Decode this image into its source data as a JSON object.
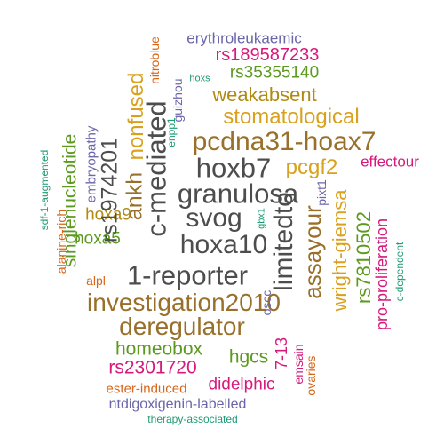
{
  "palette": {
    "gray": "#4d4d4d",
    "brown": "#99702a",
    "olive": "#b08b12",
    "gold": "#d9a11d",
    "green": "#5b9a1f",
    "magenta": "#d6197b",
    "purple": "#6b65aa",
    "orange": "#d6661a",
    "teal": "#1e9a74"
  },
  "words": [
    "erythroleukaemic",
    "rs189587233",
    "rs35355140",
    "weakabsent",
    "stomatological",
    "pcdna31-hoax7",
    "hoxb7",
    "pcgf2",
    "effectour",
    "granulosa",
    "svog",
    "hoxa10",
    "1-reporter",
    "investigation2010",
    "deregulator",
    "homeobox",
    "rs2301720",
    "hgcs",
    "didelphic",
    "ester-induced",
    "ntdigoxigenin-labelled",
    "therapy-associated",
    "nitroblue",
    "guizhou",
    "hoxs",
    "enpp1",
    "nonfused",
    "rs1974201",
    "ankh",
    "c-mediated",
    "limitedto",
    "assayour",
    "wright-giemsa",
    "rs7810502",
    "pro-proliferation",
    "c-dependent",
    "pixt1",
    "gbx1",
    "oscc",
    "7-13",
    "emsain",
    "ovaries",
    "singlenucleotide",
    "embryopathy",
    "hoxa9",
    "hoxa5",
    "sdf-1-augmented",
    "alanine-rich",
    "alpl"
  ]
}
